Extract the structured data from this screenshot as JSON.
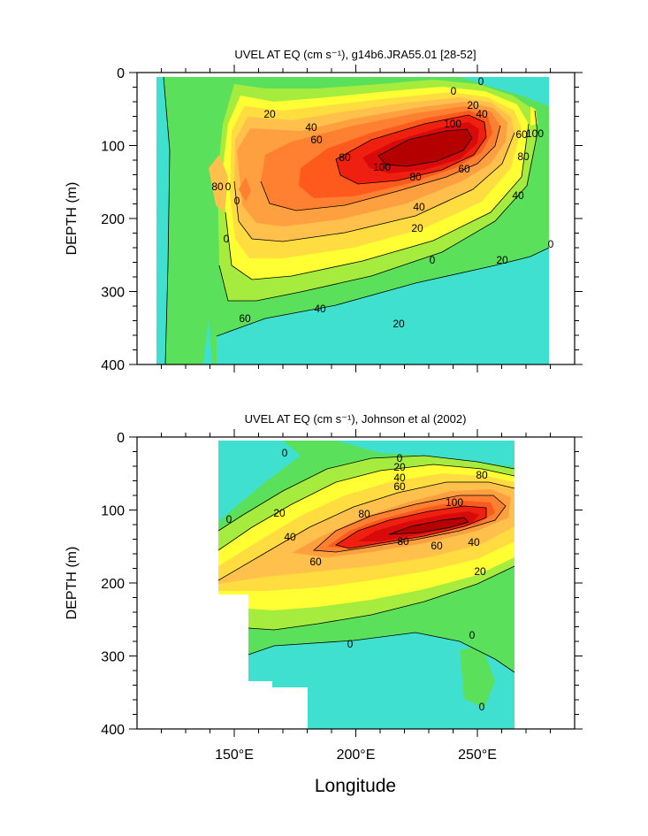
{
  "panels": [
    {
      "id": "top",
      "title": "UVEL AT EQ (cm s⁻¹), g14b6.JRA55.01 [28-52]",
      "ylabel": "DEPTH (m)",
      "yticks": [
        "0",
        "100",
        "200",
        "300",
        "400"
      ],
      "contour_labels": [
        "20",
        "40",
        "60",
        "80",
        "100",
        "100",
        "80",
        "60",
        "40",
        "20",
        "0",
        "20",
        "40",
        "60",
        "80",
        "0",
        "0",
        "0",
        "0",
        "20",
        "40",
        "60",
        "80",
        "100",
        "40",
        "20",
        "0",
        "0"
      ]
    },
    {
      "id": "bottom",
      "title": "UVEL AT EQ (cm s⁻¹), Johnson et al (2002)",
      "ylabel": "DEPTH (m)",
      "yticks": [
        "0",
        "100",
        "200",
        "300",
        "400"
      ],
      "contour_labels": [
        "0",
        "20",
        "40",
        "60",
        "80",
        "0",
        "20",
        "40",
        "60",
        "80",
        "100",
        "80",
        "60",
        "40",
        "20",
        "0",
        "0",
        "0",
        "0"
      ]
    }
  ],
  "xaxis": {
    "label": "Longitude",
    "ticks": [
      "150°E",
      "200°E",
      "250°E"
    ]
  },
  "chart_data": [
    {
      "type": "contour",
      "title": "UVEL AT EQ (cm s⁻¹), g14b6.JRA55.01 [28-52]",
      "xlabel": "Longitude",
      "ylabel": "DEPTH (m)",
      "xlim": [
        110,
        290
      ],
      "ylim": [
        400,
        0
      ],
      "units": "cm/s",
      "contour_levels": [
        0,
        10,
        20,
        30,
        40,
        50,
        60,
        70,
        80,
        90,
        100,
        110
      ],
      "data_extent_x": [
        117,
        280
      ],
      "core": {
        "longitude": 220,
        "depth": 110,
        "max_value": 110
      }
    },
    {
      "type": "contour",
      "title": "UVEL AT EQ (cm s⁻¹), Johnson et al (2002)",
      "xlabel": "Longitude",
      "ylabel": "DEPTH (m)",
      "xlim": [
        110,
        290
      ],
      "ylim": [
        400,
        0
      ],
      "units": "cm/s",
      "contour_levels": [
        0,
        10,
        20,
        30,
        40,
        50,
        60,
        70,
        80,
        90,
        100,
        110
      ],
      "data_extent_x": [
        143,
        265
      ],
      "core": {
        "longitude": 230,
        "depth": 110,
        "max_value": 105
      }
    }
  ],
  "colors": {
    "neg": "#40e0d0",
    "negDeep": "#3fe8e8",
    "c0": "#5ae05a",
    "c10": "#a6ec3e",
    "c20": "#ffff33",
    "c30": "#ffdd40",
    "c40": "#ffc04c",
    "c50": "#ffa040",
    "c60": "#ff8030",
    "c70": "#ff5a1e",
    "c80": "#f02010",
    "c90": "#d80a0a",
    "c100": "#b50000"
  }
}
